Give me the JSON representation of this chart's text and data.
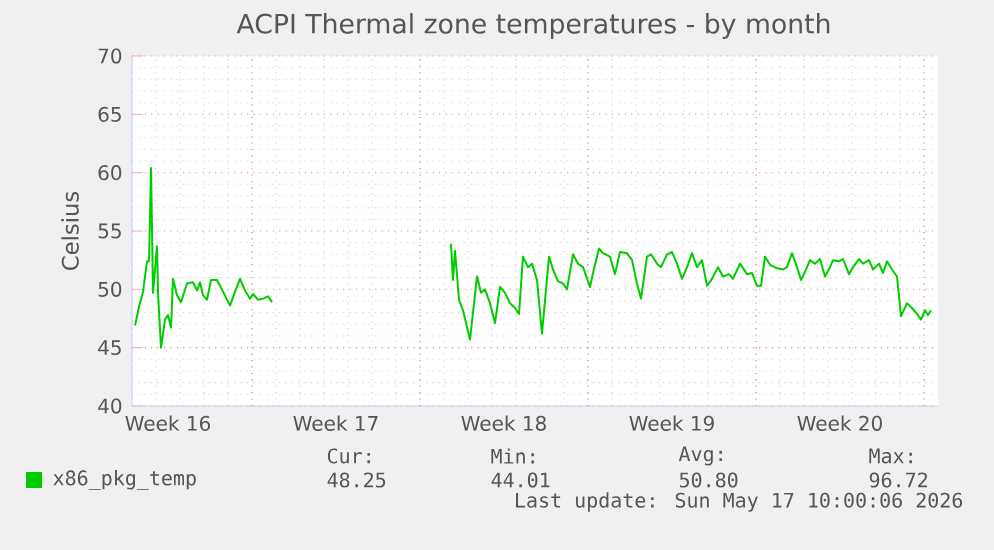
{
  "chart_data": {
    "type": "line",
    "title": "ACPI Thermal zone temperatures - by month",
    "ylabel": "Celsius",
    "xlim": [
      "2026-04-14T00:00",
      "2026-05-17T14:00"
    ],
    "ylim": [
      40,
      70
    ],
    "yticks": [
      40,
      45,
      50,
      55,
      60,
      65,
      70
    ],
    "xticks": [
      {
        "value": "2026-04-15T12:00",
        "label": "Week 16"
      },
      {
        "value": "2026-04-22T12:00",
        "label": "Week 17"
      },
      {
        "value": "2026-04-29T12:00",
        "label": "Week 18"
      },
      {
        "value": "2026-05-06T12:00",
        "label": "Week 19"
      },
      {
        "value": "2026-05-13T12:00",
        "label": "Week 20"
      },
      {
        "value": "2026-04-19T00:00",
        "label": null
      },
      {
        "value": "2026-04-26T00:00",
        "label": null
      },
      {
        "value": "2026-05-03T00:00",
        "label": null
      },
      {
        "value": "2026-05-10T00:00",
        "label": null
      },
      {
        "value": "2026-05-17T00:00",
        "label": null
      }
    ],
    "grid": true,
    "legend": "bottom",
    "series": [
      {
        "name": "x86_pkg_temp",
        "color": "#00cc00",
        "x": [
          "2026-04-14T03:00",
          "2026-04-14T07:00",
          "2026-04-14T11:00",
          "2026-04-14T15:00",
          "2026-04-14T17:00",
          "2026-04-14T19:00",
          "2026-04-14T21:00",
          "2026-04-15T01:00",
          "2026-04-15T02:00",
          "2026-04-15T05:00",
          "2026-04-15T09:00",
          "2026-04-15T12:00",
          "2026-04-15T15:00",
          "2026-04-15T17:00",
          "2026-04-15T21:00",
          "2026-04-16T01:00",
          "2026-04-16T07:00",
          "2026-04-16T13:00",
          "2026-04-16T17:00",
          "2026-04-16T20:00",
          "2026-04-16T23:00",
          "2026-04-17T03:00",
          "2026-04-17T07:00",
          "2026-04-17T13:00",
          "2026-04-17T19:00",
          "2026-04-18T02:00",
          "2026-04-18T07:00",
          "2026-04-18T12:00",
          "2026-04-18T17:00",
          "2026-04-18T22:00",
          "2026-04-19T01:00",
          "2026-04-19T06:00",
          "2026-04-19T11:00",
          "2026-04-19T16:00",
          "2026-04-19T20:00",
          "2026-04-23T12:00",
          "2026-04-27T07:00",
          "2026-04-27T09:00",
          "2026-04-27T11:00",
          "2026-04-27T15:00",
          "2026-04-27T19:00",
          "2026-04-28T02:00",
          "2026-04-28T09:00",
          "2026-04-28T13:00",
          "2026-04-28T17:00",
          "2026-04-28T22:00",
          "2026-04-29T03:00",
          "2026-04-29T08:00",
          "2026-04-29T13:00",
          "2026-04-29T18:00",
          "2026-04-29T23:00",
          "2026-04-30T03:00",
          "2026-04-30T07:00",
          "2026-04-30T12:00",
          "2026-04-30T16:00",
          "2026-04-30T21:00",
          "2026-05-01T02:00",
          "2026-05-01T09:00",
          "2026-05-01T13:00",
          "2026-05-01T18:00",
          "2026-05-01T23:00",
          "2026-05-02T03:00",
          "2026-05-02T09:00",
          "2026-05-02T14:00",
          "2026-05-02T19:00",
          "2026-05-03T02:00",
          "2026-05-03T05:00",
          "2026-05-03T11:00",
          "2026-05-03T15:00",
          "2026-05-03T22:00",
          "2026-05-04T03:00",
          "2026-05-04T08:00",
          "2026-05-04T15:00",
          "2026-05-04T20:00",
          "2026-05-05T01:00",
          "2026-05-05T05:00",
          "2026-05-05T11:00",
          "2026-05-05T15:00",
          "2026-05-05T21:00",
          "2026-05-06T01:00",
          "2026-05-06T07:00",
          "2026-05-06T12:00",
          "2026-05-06T17:00",
          "2026-05-06T22:00",
          "2026-05-07T03:00",
          "2026-05-07T08:00",
          "2026-05-07T13:00",
          "2026-05-07T18:00",
          "2026-05-07T23:00",
          "2026-05-08T04:00",
          "2026-05-08T10:00",
          "2026-05-08T15:00",
          "2026-05-08T21:00",
          "2026-05-09T01:00",
          "2026-05-09T08:00",
          "2026-05-09T15:00",
          "2026-05-09T20:00",
          "2026-05-10T01:00",
          "2026-05-10T05:00",
          "2026-05-10T09:00",
          "2026-05-10T14:00",
          "2026-05-10T21:00",
          "2026-05-11T03:00",
          "2026-05-11T07:00",
          "2026-05-11T12:00",
          "2026-05-11T17:00",
          "2026-05-11T21:00",
          "2026-05-12T01:00",
          "2026-05-12T06:00",
          "2026-05-12T11:00",
          "2026-05-12T16:00",
          "2026-05-12T21:00",
          "2026-05-13T02:00",
          "2026-05-13T05:00",
          "2026-05-13T11:00",
          "2026-05-13T15:00",
          "2026-05-13T21:00",
          "2026-05-14T01:00",
          "2026-05-14T07:00",
          "2026-05-14T11:00",
          "2026-05-14T17:00",
          "2026-05-14T21:00",
          "2026-05-15T03:00",
          "2026-05-15T07:00",
          "2026-05-15T11:00",
          "2026-05-15T16:00",
          "2026-05-15T21:00",
          "2026-05-16T01:00",
          "2026-05-16T07:00",
          "2026-05-16T12:00",
          "2026-05-16T17:00",
          "2026-05-16T21:00",
          "2026-05-17T01:00",
          "2026-05-17T04:00",
          "2026-05-17T07:00"
        ],
        "values": [
          46.9,
          48.5,
          49.8,
          52.4,
          52.4,
          60.4,
          49.7,
          53.7,
          49.7,
          45.0,
          47.4,
          47.8,
          46.7,
          50.9,
          49.5,
          48.9,
          50.5,
          50.6,
          49.9,
          50.6,
          49.5,
          49.1,
          50.8,
          50.8,
          49.8,
          48.6,
          49.8,
          50.9,
          49.9,
          49.2,
          49.6,
          49.1,
          49.2,
          49.4,
          48.9,
          null,
          53.9,
          50.8,
          53.3,
          49.1,
          48.2,
          45.7,
          51.1,
          49.7,
          50.0,
          48.8,
          47.1,
          50.2,
          49.7,
          48.8,
          48.4,
          47.9,
          52.8,
          51.9,
          52.2,
          50.8,
          46.2,
          52.8,
          51.7,
          50.7,
          50.5,
          50.0,
          53.0,
          52.2,
          51.9,
          50.2,
          51.4,
          53.5,
          53.1,
          52.8,
          51.3,
          53.2,
          53.1,
          52.5,
          50.5,
          49.2,
          52.8,
          53.0,
          52.2,
          51.9,
          53.0,
          53.2,
          52.2,
          50.9,
          51.9,
          53.1,
          51.9,
          52.5,
          50.3,
          50.9,
          51.9,
          51.1,
          51.3,
          50.9,
          52.2,
          51.3,
          51.4,
          50.3,
          50.3,
          52.8,
          52.1,
          51.8,
          51.7,
          51.9,
          53.1,
          51.9,
          50.8,
          51.5,
          52.5,
          52.2,
          52.6,
          51.1,
          51.9,
          52.5,
          52.4,
          52.6,
          51.3,
          51.9,
          52.6,
          52.2,
          52.5,
          51.7,
          52.2,
          51.4,
          52.4,
          51.7,
          51.1,
          47.7,
          48.8,
          48.4,
          47.9,
          47.4,
          48.2,
          47.8,
          48.2
        ]
      }
    ],
    "annotations": [
      "Cur:",
      "48.25",
      "Min:",
      "44.01",
      "Avg:",
      "50.80",
      "Max:",
      "96.72",
      "Last update: Sun May 17 10:00:06 2026"
    ]
  }
}
